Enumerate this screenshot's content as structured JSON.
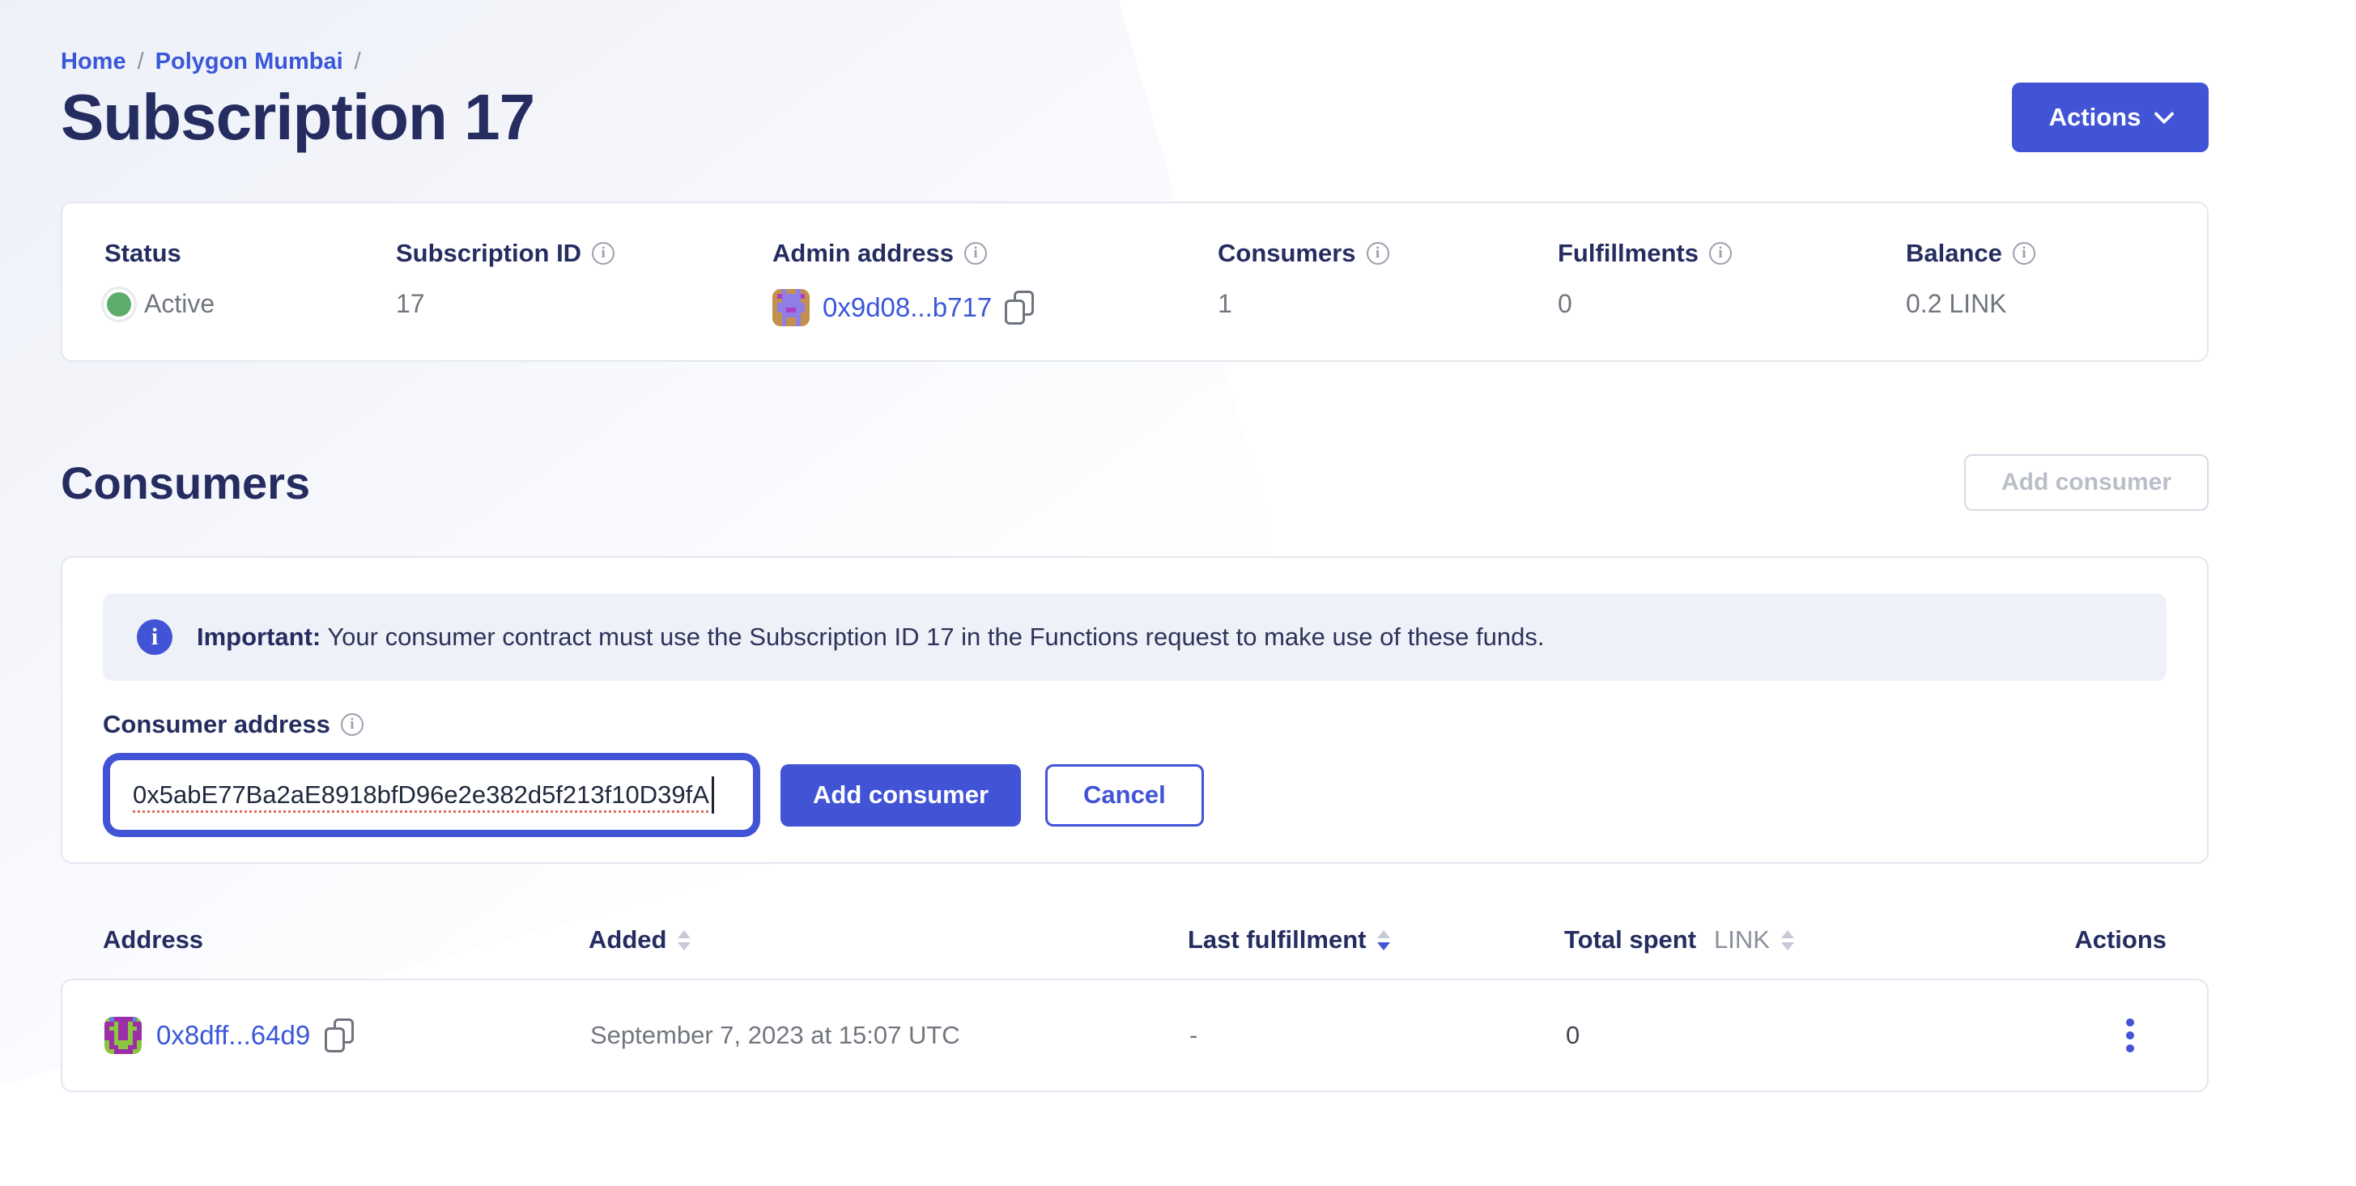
{
  "colors": {
    "accent": "#4254D6",
    "link": "#3A57D8",
    "navy": "#252D60",
    "muted": "#71767F",
    "border": "#E4E7EF",
    "banner-bg": "#EFF1F9",
    "disabled-border": "#D8DBE4",
    "disabled-text": "#B9BEC9",
    "green": "#5CAD6B",
    "icon-gray": "#9BA1AC",
    "copy-gray": "#6F747E",
    "underline-red": "#E06A5A"
  },
  "breadcrumb": {
    "home": "Home",
    "network": "Polygon Mumbai",
    "separator": "/"
  },
  "header": {
    "title": "Subscription 17",
    "actions_label": "Actions"
  },
  "overview": {
    "status_label": "Status",
    "status_value": "Active",
    "subscription_id_label": "Subscription ID",
    "subscription_id_value": "17",
    "admin_label": "Admin address",
    "admin_value": "0x9d08...b717",
    "consumers_label": "Consumers",
    "consumers_value": "1",
    "fulfillments_label": "Fulfillments",
    "fulfillments_value": "0",
    "balance_label": "Balance",
    "balance_value": "0.2 LINK"
  },
  "consumers_section": {
    "heading": "Consumers",
    "add_consumer_top_label": "Add consumer",
    "banner": {
      "bold": "Important:",
      "text": " Your consumer contract must use the Subscription ID 17 in the Functions request to make use of these funds."
    },
    "form": {
      "label": "Consumer address",
      "input_value": "0x5abE77Ba2aE8918bfD96e2e382d5f213f10D39fA",
      "submit_label": "Add consumer",
      "cancel_label": "Cancel"
    }
  },
  "table": {
    "columns": [
      "Address",
      "Added",
      "Last fulfillment",
      "Total spent",
      "Actions"
    ],
    "total_spent_unit": "LINK",
    "rows": [
      {
        "address": "0x8dff...64d9",
        "added": "September 7, 2023 at 15:07 UTC",
        "last_fulfillment": "-",
        "total_spent": "0"
      }
    ]
  },
  "avatars": {
    "admin": {
      "colors": {
        "b": "#C3914E",
        "p": "#8F7EE6",
        "s": "#AC3FC6"
      },
      "pattern": [
        "bbpbbpbb",
        "bsppppsb",
        "bbppppbb",
        "bppppppb",
        "bppssppb",
        "bbppppbb",
        "bbpbbpbb",
        "bbpbbpbb"
      ]
    },
    "consumer": {
      "colors": {
        "g": "#8CC63F",
        "p": "#9C2FA8",
        "a": "#5F83DC"
      },
      "pattern": [
        "gappppag",
        "ppgppgpp",
        "pggppggp",
        "ppgppgpp",
        "ppgppgpp",
        "gpggggpg",
        "gppggppg",
        "ggppppgg"
      ]
    }
  }
}
